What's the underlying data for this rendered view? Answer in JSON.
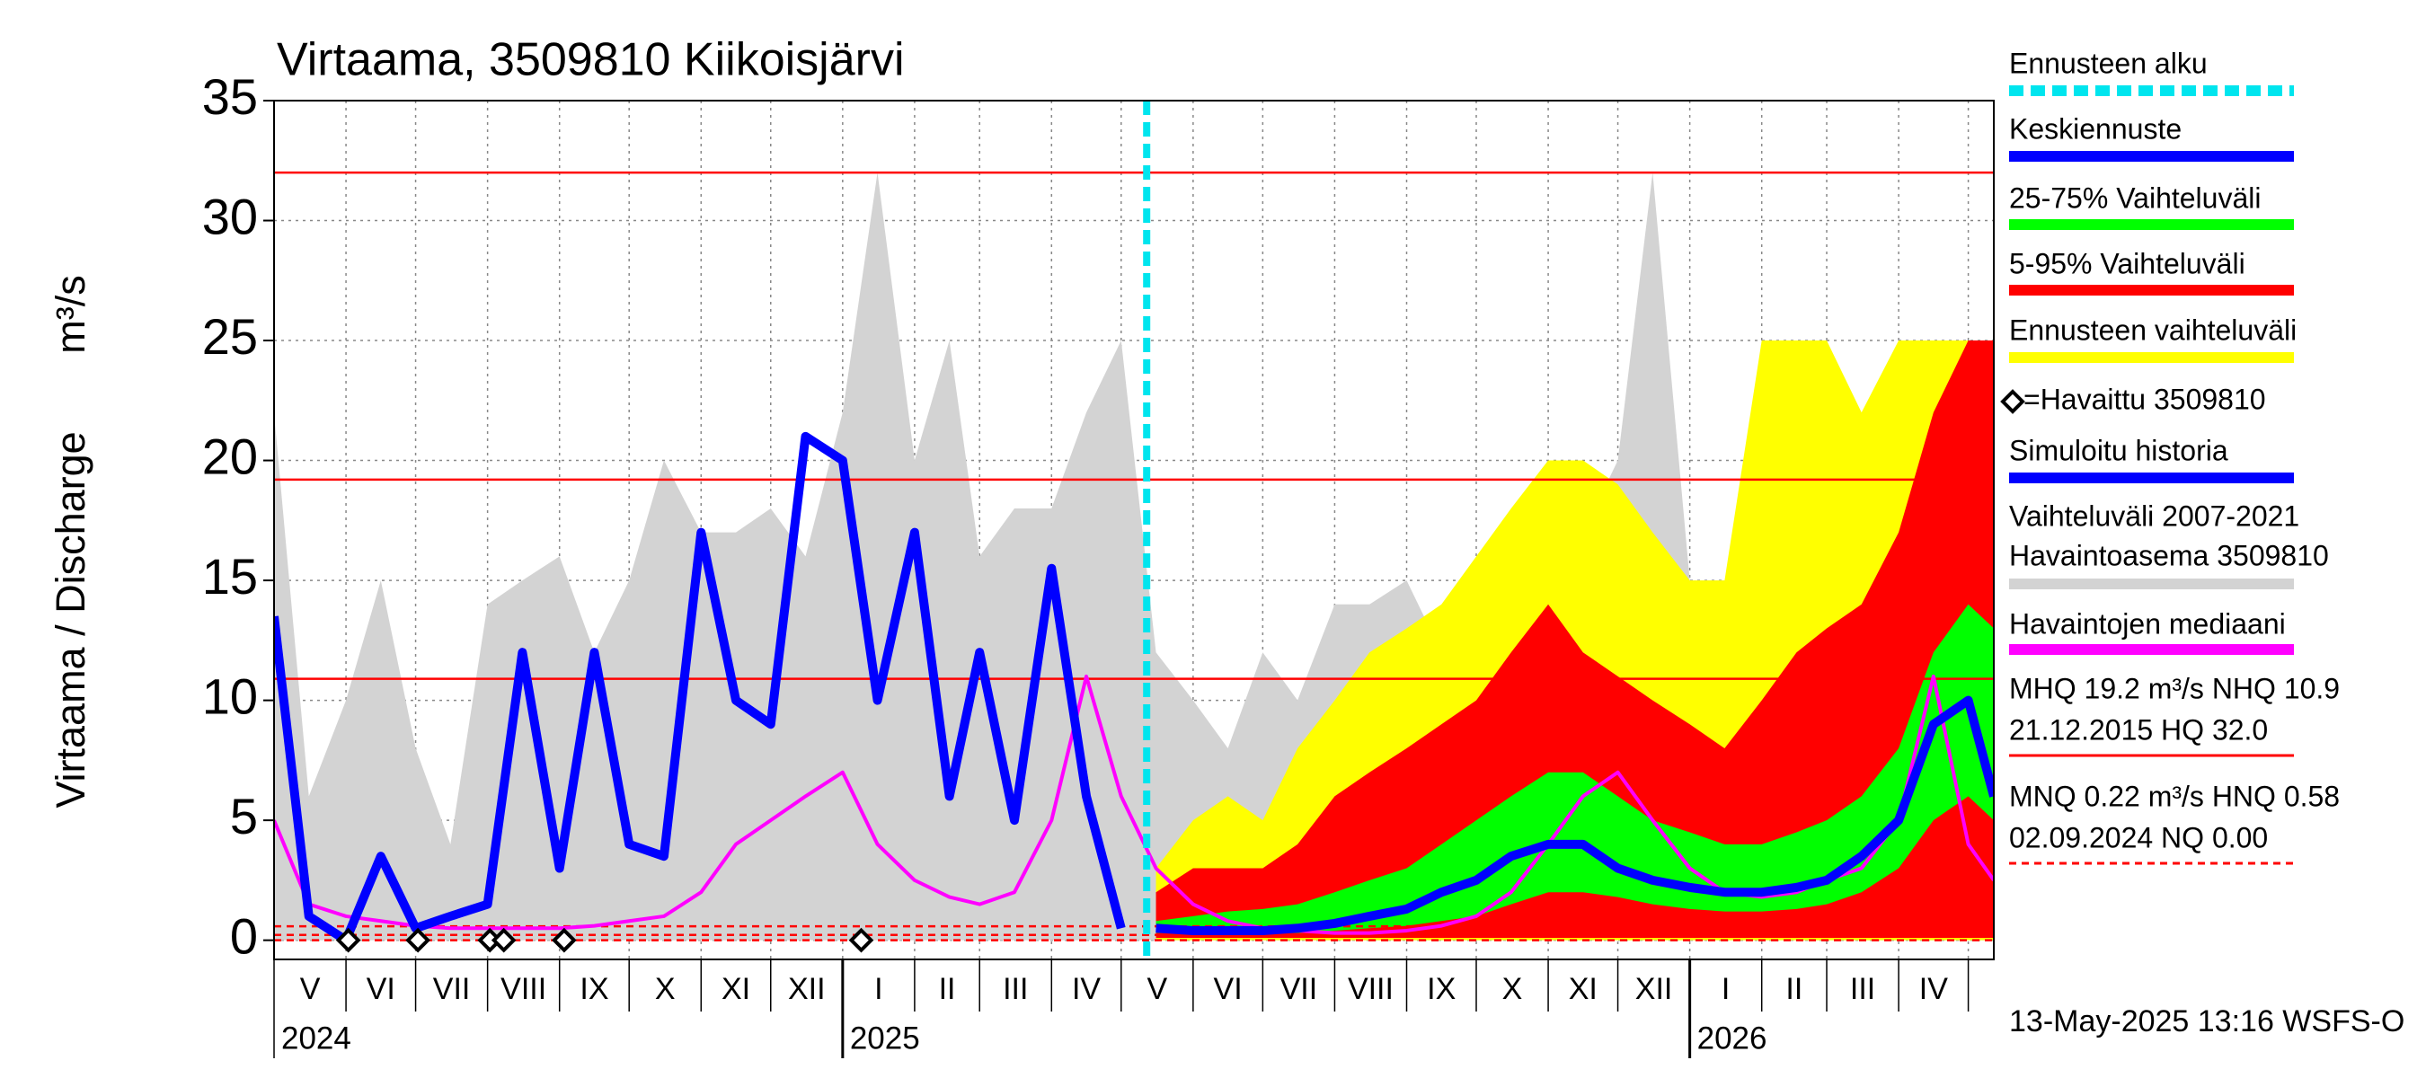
{
  "chart_data": {
    "type": "line",
    "title": "Virtaama, 3509810 Kiikoisjärvi",
    "ylabel": "Virtaama / Discharge",
    "yunit": "m³/s",
    "xlim": [
      "2024-05-01",
      "2026-05-12"
    ],
    "ylim": [
      -0.8,
      35
    ],
    "yticks": [
      0,
      5,
      10,
      15,
      20,
      25,
      30,
      35
    ],
    "grid": true,
    "months": [
      "V",
      "VI",
      "VII",
      "VIII",
      "IX",
      "X",
      "XI",
      "XII",
      "I",
      "II",
      "III",
      "IV",
      "V",
      "VI",
      "VII",
      "VIII",
      "IX",
      "X",
      "XI",
      "XII",
      "I",
      "II",
      "III",
      "IV"
    ],
    "years": [
      "2024",
      "2025",
      "2026"
    ],
    "x": [
      "2024-05-01",
      "2024-05-16",
      "2024-06-01",
      "2024-06-16",
      "2024-07-01",
      "2024-07-16",
      "2024-08-01",
      "2024-08-16",
      "2024-09-01",
      "2024-09-16",
      "2024-10-01",
      "2024-10-16",
      "2024-11-01",
      "2024-11-16",
      "2024-12-01",
      "2024-12-16",
      "2025-01-01",
      "2025-01-16",
      "2025-02-01",
      "2025-02-16",
      "2025-03-01",
      "2025-03-16",
      "2025-04-01",
      "2025-04-16",
      "2025-05-01",
      "2025-05-16",
      "2025-06-01",
      "2025-06-16",
      "2025-07-01",
      "2025-07-16",
      "2025-08-01",
      "2025-08-16",
      "2025-09-01",
      "2025-09-16",
      "2025-10-01",
      "2025-10-16",
      "2025-11-01",
      "2025-11-16",
      "2025-12-01",
      "2025-12-16",
      "2026-01-01",
      "2026-01-16",
      "2026-02-01",
      "2026-02-16",
      "2026-03-01",
      "2026-03-16",
      "2026-04-01",
      "2026-04-16",
      "2026-05-01",
      "2026-05-12"
    ],
    "forecast_start": {
      "name": "Ennusteen alku",
      "color": "#00e5ee",
      "x": "2025-05-12"
    },
    "bands": [
      {
        "name": [
          "Vaihteluväli 2007-2021",
          " Havaintoasema 3509810"
        ],
        "color": "#d3d3d3",
        "upper": [
          22,
          6,
          10,
          15,
          8,
          4,
          14,
          15,
          16,
          12,
          15,
          20,
          17,
          17,
          18,
          16,
          22,
          32,
          20,
          25,
          16,
          18,
          18,
          22,
          25,
          12,
          10,
          8,
          12,
          10,
          14,
          14,
          15,
          12,
          15,
          17,
          18,
          17,
          20,
          32,
          15,
          15,
          16,
          18,
          18,
          20,
          18,
          16,
          12,
          14
        ],
        "lower": [
          0,
          0,
          0,
          0,
          0,
          0,
          0,
          0,
          0,
          0,
          0,
          0,
          0,
          0,
          0,
          0,
          0,
          0,
          0,
          0,
          0,
          0,
          0,
          0,
          0,
          0,
          0,
          0,
          0,
          0,
          0,
          0,
          0,
          0,
          0,
          0,
          0,
          0,
          0,
          0,
          0,
          0,
          0,
          0,
          0,
          0,
          0,
          0,
          0,
          0
        ]
      },
      {
        "name": "Ennusteen vaihteluväli",
        "color": "#ffff00",
        "upper": [
          null,
          null,
          null,
          null,
          null,
          null,
          null,
          null,
          null,
          null,
          null,
          null,
          null,
          null,
          null,
          null,
          null,
          null,
          null,
          null,
          null,
          null,
          null,
          null,
          null,
          3,
          5,
          6,
          5,
          8,
          10,
          12,
          13,
          14,
          16,
          18,
          20,
          20,
          19,
          17,
          15,
          15,
          25,
          25,
          25,
          22,
          25,
          25,
          25,
          25
        ],
        "lower": [
          null,
          null,
          null,
          null,
          null,
          null,
          null,
          null,
          null,
          null,
          null,
          null,
          null,
          null,
          null,
          null,
          null,
          null,
          null,
          null,
          null,
          null,
          null,
          null,
          null,
          0,
          0,
          0,
          0,
          0,
          0,
          0,
          0,
          0,
          0,
          0,
          0,
          0,
          0,
          0,
          0,
          0,
          0,
          0,
          0,
          0,
          0,
          0,
          0,
          0
        ]
      },
      {
        "name": "5-95% Vaihteluväli",
        "color": "#ff0000",
        "upper": [
          null,
          null,
          null,
          null,
          null,
          null,
          null,
          null,
          null,
          null,
          null,
          null,
          null,
          null,
          null,
          null,
          null,
          null,
          null,
          null,
          null,
          null,
          null,
          null,
          null,
          2,
          3,
          3,
          3,
          4,
          6,
          7,
          8,
          9,
          10,
          12,
          14,
          12,
          11,
          10,
          9,
          8,
          10,
          12,
          13,
          14,
          17,
          22,
          25,
          25
        ],
        "lower": [
          null,
          null,
          null,
          null,
          null,
          null,
          null,
          null,
          null,
          null,
          null,
          null,
          null,
          null,
          null,
          null,
          null,
          null,
          null,
          null,
          null,
          null,
          null,
          null,
          null,
          0.1,
          0.1,
          0.1,
          0.1,
          0.1,
          0.1,
          0.1,
          0.1,
          0.1,
          0.1,
          0.1,
          0.1,
          0.1,
          0.1,
          0.1,
          0.1,
          0.1,
          0.1,
          0.1,
          0.1,
          0.1,
          0.1,
          0.1,
          0.1,
          0.1
        ]
      },
      {
        "name": "25-75% Vaihteluväli",
        "color": "#00ff00",
        "upper": [
          null,
          null,
          null,
          null,
          null,
          null,
          null,
          null,
          null,
          null,
          null,
          null,
          null,
          null,
          null,
          null,
          null,
          null,
          null,
          null,
          null,
          null,
          null,
          null,
          null,
          0.8,
          1,
          1.2,
          1.3,
          1.5,
          2,
          2.5,
          3,
          4,
          5,
          6,
          7,
          7,
          6,
          5,
          4.5,
          4,
          4,
          4.5,
          5,
          6,
          8,
          12,
          14,
          13
        ],
        "lower": [
          null,
          null,
          null,
          null,
          null,
          null,
          null,
          null,
          null,
          null,
          null,
          null,
          null,
          null,
          null,
          null,
          null,
          null,
          null,
          null,
          null,
          null,
          null,
          null,
          null,
          0.3,
          0.3,
          0.3,
          0.3,
          0.3,
          0.4,
          0.5,
          0.6,
          0.8,
          1,
          1.5,
          2,
          2,
          1.8,
          1.5,
          1.3,
          1.2,
          1.2,
          1.3,
          1.5,
          2,
          3,
          5,
          6,
          5
        ]
      }
    ],
    "series": [
      {
        "name": "Havaintojen mediaani",
        "color": "#ff00ff",
        "width": 4,
        "values": [
          5,
          1.5,
          1,
          0.8,
          0.6,
          0.5,
          0.5,
          0.5,
          0.5,
          0.6,
          0.8,
          1,
          2,
          4,
          5,
          6,
          7,
          4,
          2.5,
          1.8,
          1.5,
          2,
          5,
          11,
          6,
          3,
          1.5,
          0.8,
          0.5,
          0.4,
          0.3,
          0.3,
          0.4,
          0.6,
          1,
          2,
          4,
          6,
          7,
          5,
          3,
          2,
          1.8,
          2,
          2.5,
          3,
          5,
          11,
          4,
          2.5
        ]
      },
      {
        "name": "Simuloitu historia",
        "color": "#0000ff",
        "width": 10,
        "values": [
          13.5,
          1,
          0,
          3.5,
          0.5,
          1,
          1.5,
          12,
          3,
          12,
          4,
          3.5,
          17,
          10,
          9,
          21,
          20,
          10,
          17,
          6,
          12,
          5,
          15.5,
          6,
          0.5,
          null,
          null,
          null,
          null,
          null,
          null,
          null,
          null,
          null,
          null,
          null,
          null,
          null,
          null,
          null,
          null,
          null,
          null,
          null,
          null,
          null,
          null,
          null,
          null,
          null
        ]
      },
      {
        "name": "Keskiennuste",
        "color": "#0000ff",
        "width": 10,
        "values": [
          null,
          null,
          null,
          null,
          null,
          null,
          null,
          null,
          null,
          null,
          null,
          null,
          null,
          null,
          null,
          null,
          null,
          null,
          null,
          null,
          null,
          null,
          null,
          null,
          null,
          0.5,
          0.4,
          0.4,
          0.4,
          0.5,
          0.7,
          1,
          1.3,
          2,
          2.5,
          3.5,
          4,
          4,
          3,
          2.5,
          2.2,
          2,
          2,
          2.2,
          2.5,
          3.5,
          5,
          9,
          10,
          6
        ]
      }
    ],
    "observed": {
      "name": "=Havaittu 3509810",
      "x": [
        "2024-06-02",
        "2024-07-02",
        "2024-08-02",
        "2024-08-08",
        "2024-09-03",
        "2025-01-09"
      ],
      "values": [
        0,
        0,
        0,
        0,
        0,
        0
      ]
    },
    "reference_lines": [
      {
        "value": 32.0,
        "color": "#ff0000",
        "dashed": false
      },
      {
        "value": 19.2,
        "color": "#ff0000",
        "dashed": false
      },
      {
        "value": 10.9,
        "color": "#ff0000",
        "dashed": false
      },
      {
        "value": 0.58,
        "color": "#ff0000",
        "dashed": true
      },
      {
        "value": 0.22,
        "color": "#ff0000",
        "dashed": true
      },
      {
        "value": 0,
        "color": "#ff0000",
        "dashed": true
      }
    ],
    "notes": [
      {
        "lines": [
          "MHQ 19.2 m³/s NHQ 10.9",
          "21.12.2015 HQ 32.0"
        ],
        "color": "#ff0000",
        "dashed": false
      },
      {
        "lines": [
          "MNQ 0.22 m³/s HNQ 0.58",
          "02.09.2024 NQ 0.00"
        ],
        "color": "#ff0000",
        "dashed": true
      }
    ],
    "timestamp": "13-May-2025 13:16 WSFS-O"
  }
}
